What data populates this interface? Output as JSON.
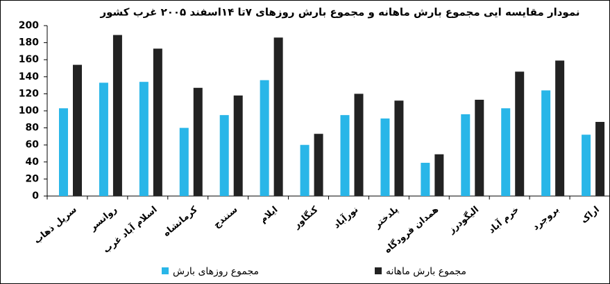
{
  "chart_data": {
    "type": "bar",
    "title": "نمودار مقایسه ایی مجموع بارش ماهانه و مجموع بارش روزهای ۷تا ۱۴اسفند ۲۰۰۵ غرب کشور",
    "categories": [
      "سرپل ذهاب",
      "روانسر",
      "اسلام آباد غرب",
      "کرمانشاه",
      "سنندج",
      "ایلام",
      "کنگاور",
      "نورآباد",
      "پلدختر",
      "همدان فرودگاه",
      "الیگودرز",
      "خرم آباد",
      "بروجرد",
      "اراک"
    ],
    "series": [
      {
        "name": "مجموع روزهای بارش",
        "color": "#29b6e8",
        "values": [
          103,
          133,
          134,
          80,
          95,
          136,
          60,
          95,
          91,
          39,
          96,
          103,
          124,
          72
        ]
      },
      {
        "name": "مجموع بارش ماهانه",
        "color": "#222222",
        "values": [
          154,
          189,
          173,
          127,
          118,
          186,
          73,
          120,
          112,
          49,
          113,
          146,
          159,
          87
        ]
      }
    ],
    "ylim": [
      0,
      200
    ],
    "yticks": [
      0,
      20,
      40,
      60,
      80,
      100,
      120,
      140,
      160,
      180,
      200
    ]
  }
}
